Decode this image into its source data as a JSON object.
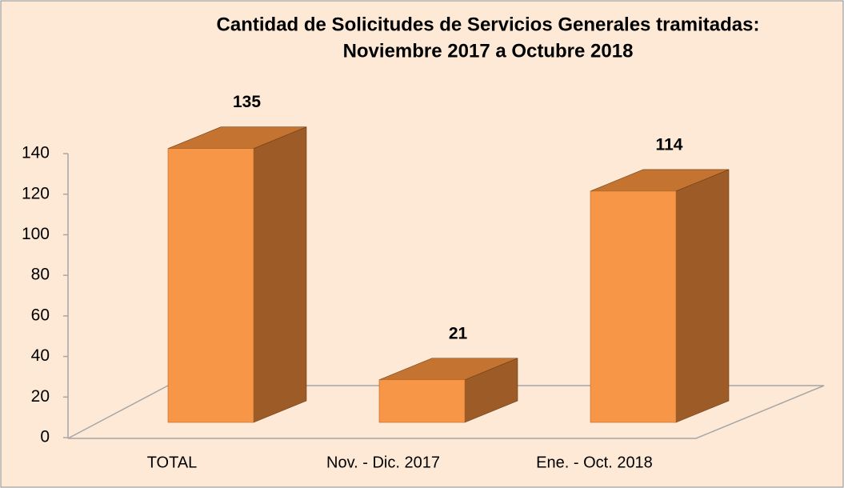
{
  "chart_data": {
    "type": "bar3d",
    "title": "Cantidad de Solicitudes de Servicios Generales tramitadas:",
    "subtitle": "Noviembre 2017 a Octubre 2018",
    "categories": [
      "TOTAL",
      "Nov. - Dic. 2017",
      "Ene. - Oct. 2018"
    ],
    "values": [
      135,
      21,
      114
    ],
    "color": "#f79646",
    "ylim": [
      0,
      140
    ],
    "yticks": [
      0,
      20,
      40,
      60,
      80,
      100,
      120,
      140
    ]
  }
}
